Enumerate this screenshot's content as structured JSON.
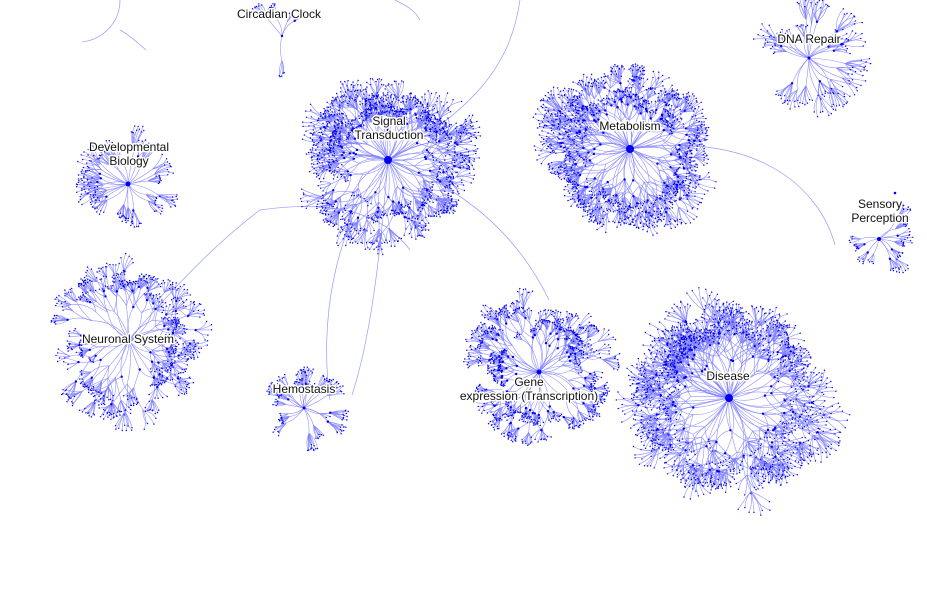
{
  "colors": {
    "background": "#ffffff",
    "edge": "#7f7fff",
    "node": "#0000ee",
    "label": "#111111"
  },
  "pathways": [
    {
      "key": "circadian",
      "lines": [
        "Circadian Clock"
      ]
    },
    {
      "key": "dna-repair",
      "lines": [
        "DNA Repair"
      ]
    },
    {
      "key": "signal",
      "lines": [
        "Signal",
        "Transduction"
      ]
    },
    {
      "key": "metabolism",
      "lines": [
        "Metabolism"
      ]
    },
    {
      "key": "developmental",
      "lines": [
        "Developmental",
        "Biology"
      ]
    },
    {
      "key": "sensory",
      "lines": [
        "Sensory",
        "Perception"
      ]
    },
    {
      "key": "neuronal",
      "lines": [
        "Neuronal System"
      ]
    },
    {
      "key": "hemostasis",
      "lines": [
        "Hemostasis"
      ]
    },
    {
      "key": "gene-expression",
      "lines": [
        "Gene",
        "expression (Transcription)"
      ]
    },
    {
      "key": "disease",
      "lines": [
        "Disease"
      ]
    }
  ]
}
